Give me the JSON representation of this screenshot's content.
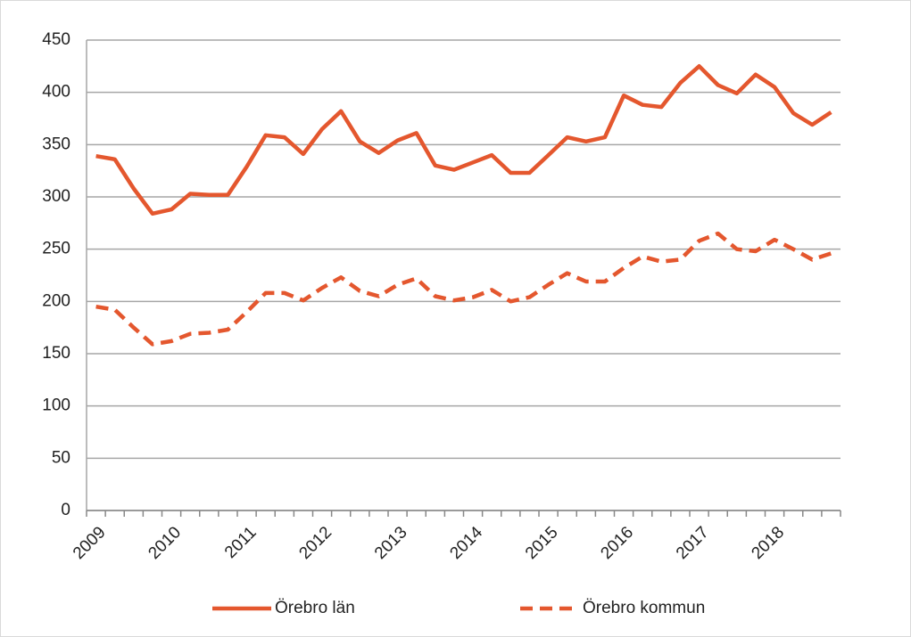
{
  "chart_data": {
    "type": "line",
    "categories": [
      "2009",
      null,
      null,
      null,
      "2010",
      null,
      null,
      null,
      "2011",
      null,
      null,
      null,
      "2012",
      null,
      null,
      null,
      "2013",
      null,
      null,
      null,
      "2014",
      null,
      null,
      null,
      "2015",
      null,
      null,
      null,
      "2016",
      null,
      null,
      null,
      "2017",
      null,
      null,
      null,
      "2018",
      null,
      null,
      null
    ],
    "series": [
      {
        "name": "Örebro län",
        "color": "#e4572e",
        "dash": false,
        "values": [
          339,
          336,
          308,
          284,
          288,
          303,
          302,
          302,
          329,
          359,
          357,
          341,
          365,
          382,
          353,
          342,
          354,
          361,
          330,
          326,
          333,
          340,
          323,
          323,
          340,
          357,
          353,
          357,
          397,
          388,
          386,
          409,
          425,
          407,
          399,
          417,
          405,
          380,
          369,
          381
        ]
      },
      {
        "name": "Örebro kommun",
        "color": "#e4572e",
        "dash": true,
        "values": [
          195,
          192,
          175,
          159,
          162,
          169,
          170,
          173,
          190,
          208,
          208,
          201,
          213,
          223,
          210,
          205,
          216,
          222,
          205,
          201,
          204,
          211,
          200,
          204,
          216,
          227,
          219,
          219,
          232,
          243,
          238,
          240,
          258,
          265,
          250,
          248,
          259,
          250,
          240,
          246
        ]
      }
    ],
    "ylim": [
      0,
      450
    ],
    "yticks": [
      0,
      50,
      100,
      150,
      200,
      250,
      300,
      350,
      400,
      450
    ],
    "grid": true,
    "legend": "bottom"
  }
}
